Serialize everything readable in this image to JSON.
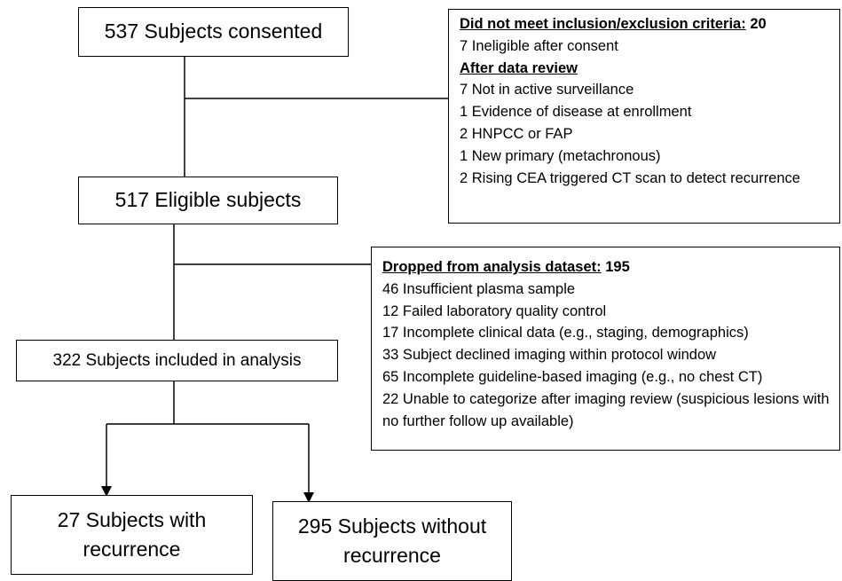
{
  "nodes": [
    {
      "label": "537 Subjects consented"
    },
    {
      "label": "517 Eligible subjects"
    },
    {
      "label": "322 Subjects included in analysis"
    },
    {
      "label": "27 Subjects with recurrence"
    },
    {
      "label": "295 Subjects without recurrence"
    }
  ],
  "exclusions": [
    {
      "heading": "Did not meet inclusion/exclusion criteria:",
      "count": 20,
      "items": [
        "7 Ineligible after consent"
      ],
      "subheading": "After data review",
      "subitems": [
        "7 Not in active surveillance",
        "1 Evidence of disease at enrollment",
        "2 HNPCC or FAP",
        "1 New primary (metachronous)",
        "2 Rising CEA triggered CT scan to detect recurrence"
      ]
    },
    {
      "heading": "Dropped from analysis dataset:",
      "count": 195,
      "items": [
        "46 Insufficient plasma sample",
        "12 Failed laboratory quality control",
        "17 Incomplete clinical data (e.g., staging, demographics)",
        "33 Subject declined imaging within protocol window",
        "65 Incomplete guideline-based imaging (e.g., no chest CT)",
        "22 Unable to categorize after imaging review (suspicious lesions with no further follow up available)"
      ]
    }
  ]
}
